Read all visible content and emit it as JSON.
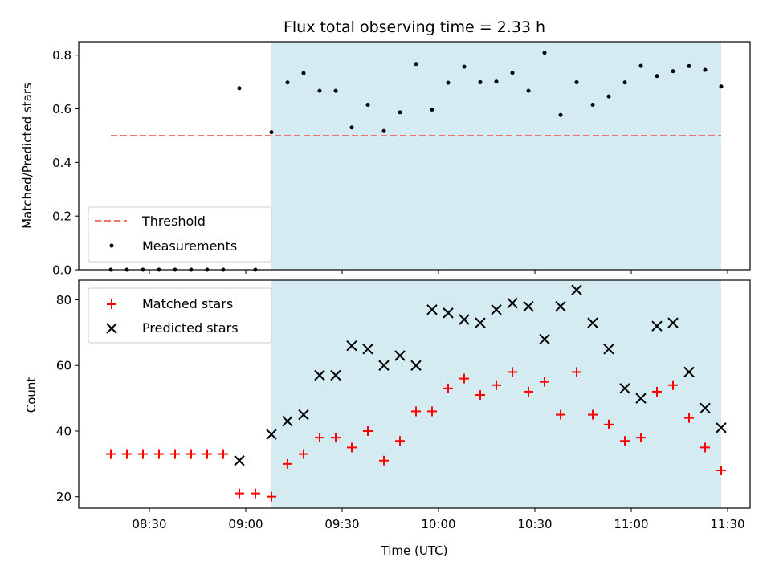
{
  "chart_data": [
    {
      "type": "scatter",
      "title": "Flux total observing time = 2.33 h",
      "ylabel": "Matched/Predicted stars",
      "ylim": [
        0,
        0.85
      ],
      "yticks": [
        "0.0",
        "0.2",
        "0.4",
        "0.6",
        "0.8"
      ],
      "shaded_region": {
        "from": "09:08",
        "to": "11:28",
        "color": "#d4ebf2"
      },
      "threshold": {
        "name": "Threshold",
        "value": 0.5,
        "from": "08:18",
        "to": "11:28",
        "color": "#f87171"
      },
      "legend_placement": "lower-left",
      "series": [
        {
          "name": "Measurements",
          "x": [
            "08:18",
            "08:23",
            "08:28",
            "08:33",
            "08:38",
            "08:43",
            "08:48",
            "08:53",
            "08:58",
            "09:03",
            "09:08",
            "09:13",
            "09:18",
            "09:23",
            "09:28",
            "09:33",
            "09:38",
            "09:43",
            "09:48",
            "09:53",
            "09:58",
            "10:03",
            "10:08",
            "10:13",
            "10:18",
            "10:23",
            "10:28",
            "10:33",
            "10:38",
            "10:43",
            "10:48",
            "10:53",
            "10:58",
            "11:03",
            "11:08",
            "11:13",
            "11:18",
            "11:23",
            "11:28"
          ],
          "y": [
            0,
            0,
            0,
            0,
            0,
            0,
            0,
            0,
            0.677,
            0,
            0.513,
            0.698,
            0.733,
            0.667,
            0.667,
            0.53,
            0.615,
            0.517,
            0.587,
            0.767,
            0.597,
            0.697,
            0.757,
            0.699,
            0.701,
            0.734,
            0.667,
            0.809,
            0.577,
            0.699,
            0.615,
            0.646,
            0.698,
            0.76,
            0.722,
            0.74,
            0.759,
            0.745,
            0.683
          ]
        }
      ]
    },
    {
      "type": "scatter",
      "xlabel": "Time (UTC)",
      "ylabel": "Count",
      "ylim": [
        16.5,
        86
      ],
      "yticks": [
        "20",
        "40",
        "60",
        "80"
      ],
      "xticks": [
        "08:30",
        "09:00",
        "09:30",
        "10:00",
        "10:30",
        "11:00",
        "11:30"
      ],
      "shaded_region": {
        "from": "09:08",
        "to": "11:28",
        "color": "#d4ebf2"
      },
      "legend_placement": "upper-left",
      "series": [
        {
          "name": "Matched stars",
          "color": "#ff0000",
          "marker": "plus",
          "x": [
            "08:18",
            "08:23",
            "08:28",
            "08:33",
            "08:38",
            "08:43",
            "08:48",
            "08:53",
            "08:58",
            "09:03",
            "09:08",
            "09:13",
            "09:18",
            "09:23",
            "09:28",
            "09:33",
            "09:38",
            "09:43",
            "09:48",
            "09:53",
            "09:58",
            "10:03",
            "10:08",
            "10:13",
            "10:18",
            "10:23",
            "10:28",
            "10:33",
            "10:38",
            "10:43",
            "10:48",
            "10:53",
            "10:58",
            "11:03",
            "11:08",
            "11:13",
            "11:18",
            "11:23",
            "11:28"
          ],
          "y": [
            33,
            33,
            33,
            33,
            33,
            33,
            33,
            33,
            21,
            21,
            20,
            30,
            33,
            38,
            38,
            35,
            40,
            31,
            37,
            46,
            46,
            53,
            56,
            51,
            54,
            58,
            52,
            55,
            45,
            58,
            45,
            42,
            37,
            38,
            52,
            54,
            44,
            35,
            28
          ]
        },
        {
          "name": "Predicted stars",
          "color": "#000000",
          "marker": "x",
          "x": [
            "08:58",
            "09:08",
            "09:13",
            "09:18",
            "09:23",
            "09:28",
            "09:33",
            "09:38",
            "09:43",
            "09:48",
            "09:53",
            "09:58",
            "10:03",
            "10:08",
            "10:13",
            "10:18",
            "10:23",
            "10:28",
            "10:33",
            "10:38",
            "10:43",
            "10:48",
            "10:53",
            "10:58",
            "11:03",
            "11:08",
            "11:13",
            "11:18",
            "11:23",
            "11:28"
          ],
          "y": [
            31,
            39,
            43,
            45,
            57,
            57,
            66,
            65,
            60,
            63,
            60,
            77,
            76,
            74,
            73,
            77,
            79,
            78,
            68,
            78,
            83,
            73,
            65,
            53,
            50,
            72,
            73,
            58,
            47,
            41
          ]
        }
      ]
    }
  ]
}
